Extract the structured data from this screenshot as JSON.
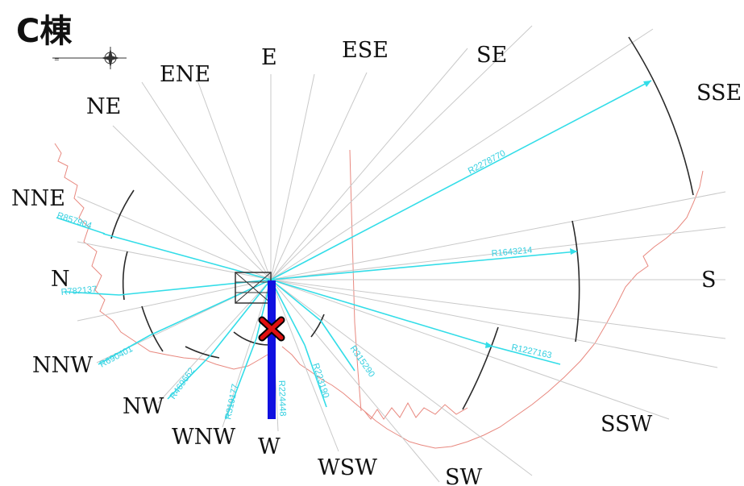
{
  "title": "C棟",
  "colors": {
    "title": "#111111",
    "ray": "#c9c9c9",
    "arc": "#2a2a2a",
    "radius_line": "#33dde8",
    "coastline": "#e8887f",
    "wind_bar": "#1010e0",
    "marker_fill": "#e01010"
  },
  "compass_icon": "compass-rose-icon",
  "directions": {
    "NE": "NE",
    "ENE": "ENE",
    "E": "E",
    "ESE": "ESE",
    "SE": "SE",
    "SSE": "SSE",
    "NNE": "NNE",
    "N": "N",
    "NNW": "NNW",
    "NW": "NW",
    "WNW": "WNW",
    "W": "W",
    "WSW": "WSW",
    "SW": "SW",
    "SSW": "SSW",
    "S": "S"
  },
  "radius_labels": {
    "SSE": "R2278770",
    "S": "R1643214",
    "SSW": "R1227163",
    "SW": "R315290",
    "WSW": "R223190",
    "W": "R224448",
    "WNW": "R319177",
    "NW": "R469662",
    "NNW": "R690401",
    "N": "R782137",
    "NNE": "R857904"
  }
}
